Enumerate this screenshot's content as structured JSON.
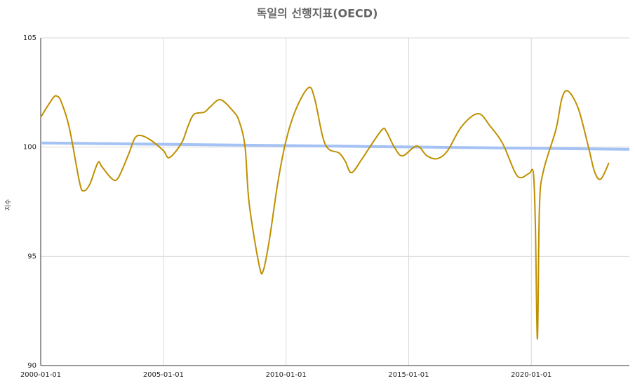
{
  "chart_data": {
    "type": "line",
    "title": "독일의 선행지표(OECD)",
    "y_label": "지수",
    "series": [
      {
        "color": "#bf9000",
        "x": [
          "2000-01-01",
          "2000-07-01",
          "2000-09-01",
          "2000-11-01",
          "2001-03-01",
          "2001-08-01",
          "2001-10-01",
          "2002-01-01",
          "2002-05-01",
          "2002-07-01",
          "2002-12-01",
          "2003-03-01",
          "2003-08-01",
          "2003-11-01",
          "2004-02-01",
          "2004-07-01",
          "2005-01-01",
          "2005-04-01",
          "2005-10-01",
          "2006-01-01",
          "2006-04-01",
          "2006-09-01",
          "2006-12-01",
          "2007-05-01",
          "2007-11-01",
          "2008-02-01",
          "2008-05-01",
          "2008-07-01",
          "2008-12-01",
          "2009-02-01",
          "2009-05-01",
          "2009-09-01",
          "2010-01-01",
          "2010-06-01",
          "2010-12-01",
          "2011-03-01",
          "2011-07-01",
          "2011-10-01",
          "2012-03-01",
          "2012-06-01",
          "2012-09-01",
          "2013-02-01",
          "2013-06-01",
          "2013-12-01",
          "2014-02-01",
          "2014-06-01",
          "2014-10-01",
          "2015-05-01",
          "2015-10-01",
          "2016-03-01",
          "2016-08-01",
          "2017-03-01",
          "2017-11-01",
          "2018-05-01",
          "2018-11-01",
          "2019-05-01",
          "2019-08-01",
          "2019-12-01",
          "2020-02-01",
          "2020-03-01",
          "2020-04-01",
          "2020-05-01",
          "2020-07-01",
          "2021-01-01",
          "2021-04-01",
          "2021-07-01",
          "2021-12-01",
          "2022-05-01",
          "2022-08-01",
          "2022-11-01",
          "2023-03-01"
        ],
        "values": [
          101.37,
          102.24,
          102.33,
          102.08,
          100.9,
          98.4,
          98.0,
          98.3,
          99.28,
          99.1,
          98.54,
          98.6,
          99.67,
          100.4,
          100.53,
          100.31,
          99.84,
          99.52,
          100.2,
          100.95,
          101.5,
          101.6,
          101.85,
          102.17,
          101.66,
          101.2,
          100.0,
          97.42,
          94.53,
          94.4,
          95.82,
          98.38,
          100.3,
          101.76,
          102.72,
          102.24,
          100.47,
          99.9,
          99.73,
          99.35,
          98.83,
          99.44,
          100.0,
          100.8,
          100.73,
          100.0,
          99.6,
          100.05,
          99.6,
          99.47,
          99.83,
          100.95,
          101.53,
          100.95,
          100.16,
          98.86,
          98.6,
          98.8,
          98.8,
          96.45,
          91.22,
          97.25,
          98.93,
          100.8,
          102.24,
          102.56,
          101.76,
          100.0,
          98.86,
          98.54,
          99.28
        ]
      },
      {
        "color": "#a4c2f4",
        "x": [
          "2000-01-01",
          "2023-12-31"
        ],
        "values": [
          100.19,
          99.9
        ]
      }
    ],
    "xlim": [
      "2000-01-01",
      "2023-12-31"
    ],
    "xticks": [
      "2000-01-01",
      "2005-01-01",
      "2010-01-01",
      "2015-01-01",
      "2020-01-01"
    ],
    "ylim": [
      90,
      105
    ],
    "yticks": [
      90,
      95,
      100,
      105
    ],
    "grid": true
  }
}
